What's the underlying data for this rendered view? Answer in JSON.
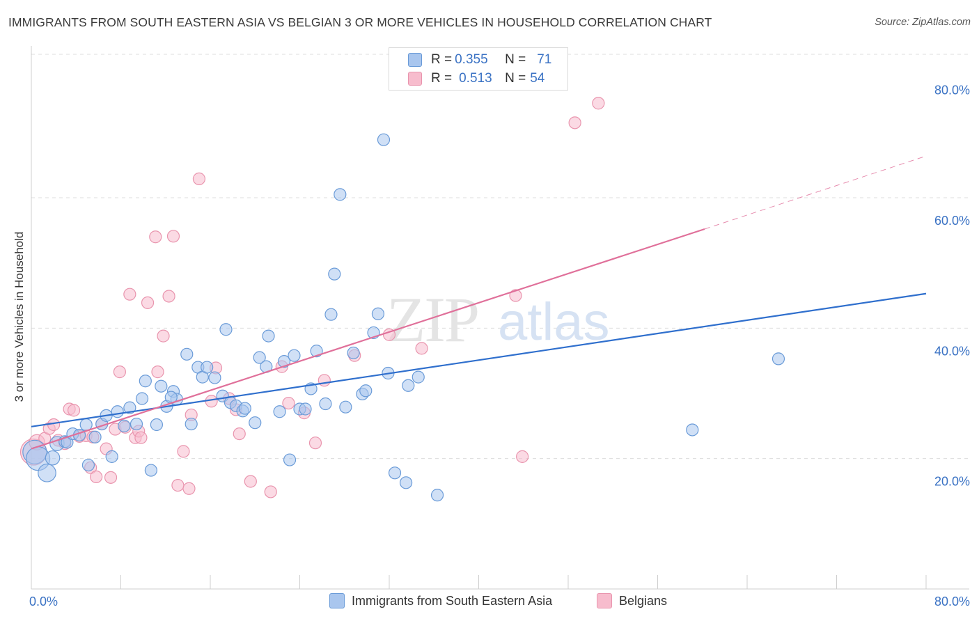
{
  "title": "IMMIGRANTS FROM SOUTH EASTERN ASIA VS BELGIAN 3 OR MORE VEHICLES IN HOUSEHOLD CORRELATION CHART",
  "source": "Source: ZipAtlas.com",
  "watermark": {
    "zip": "ZIP",
    "atlas": "atlas"
  },
  "legend_top": {
    "rows": [
      {
        "r_label": "R = ",
        "r_value": "0.355",
        "n_label": "N = ",
        "n_value": "71"
      },
      {
        "r_label": "R = ",
        "r_value": "0.513",
        "n_label": "N = ",
        "n_value": "54"
      }
    ]
  },
  "legend_bottom": {
    "items": [
      {
        "label": "Immigrants from South Eastern Asia"
      },
      {
        "label": "Belgians"
      }
    ]
  },
  "colors": {
    "blue_fill": "#a9c6ee",
    "blue_stroke": "#6a9bd8",
    "blue_line": "#2f6fcd",
    "pink_fill": "#f7bccd",
    "pink_stroke": "#e995ae",
    "pink_line": "#e0709a",
    "axis_text": "#3a72c4",
    "grid": "#dcdcdc"
  },
  "chart_data": {
    "type": "scatter",
    "title": "IMMIGRANTS FROM SOUTH EASTERN ASIA VS BELGIAN 3 OR MORE VEHICLES IN HOUSEHOLD CORRELATION CHART",
    "xlabel": "",
    "ylabel": "3 or more Vehicles in Household",
    "xlim": [
      0,
      80
    ],
    "ylim": [
      0,
      82
    ],
    "x_tick_labels": [
      "0.0%",
      "80.0%"
    ],
    "y_ticks": [
      20,
      40,
      60,
      80
    ],
    "y_tick_labels": [
      "20.0%",
      "40.0%",
      "60.0%",
      "80.0%"
    ],
    "grid": true,
    "legend": "top-center",
    "series": [
      {
        "name": "Immigrants from South Eastern Asia",
        "R": 0.355,
        "N": 71,
        "trend": {
          "x0": 0,
          "y0": 24.9,
          "x1": 80,
          "y1": 45.3,
          "dashed_to": null
        },
        "points": [
          [
            0.3,
            21.0,
            2
          ],
          [
            0.6,
            20.0,
            2
          ],
          [
            1.4,
            17.8,
            1.5
          ],
          [
            1.9,
            20.1,
            1.2
          ],
          [
            2.3,
            22.3,
            1.2
          ],
          [
            3.0,
            22.6,
            1
          ],
          [
            3.2,
            22.5,
            1
          ],
          [
            3.7,
            23.8,
            1
          ],
          [
            4.3,
            23.6,
            1
          ],
          [
            4.9,
            25.2,
            1
          ],
          [
            5.1,
            19.0,
            1
          ],
          [
            5.7,
            23.3,
            1
          ],
          [
            6.3,
            25.3,
            1
          ],
          [
            6.7,
            26.6,
            1
          ],
          [
            7.2,
            20.3,
            1
          ],
          [
            7.7,
            27.2,
            1
          ],
          [
            8.3,
            25.0,
            1
          ],
          [
            8.8,
            27.8,
            1
          ],
          [
            9.4,
            25.3,
            1
          ],
          [
            9.9,
            29.2,
            1
          ],
          [
            10.2,
            31.9,
            1
          ],
          [
            10.7,
            18.2,
            1
          ],
          [
            11.2,
            25.2,
            1
          ],
          [
            11.6,
            31.1,
            1
          ],
          [
            12.1,
            28.0,
            1
          ],
          [
            12.7,
            30.3,
            1
          ],
          [
            13.0,
            29.1,
            1
          ],
          [
            13.9,
            36.0,
            1
          ],
          [
            14.3,
            25.3,
            1
          ],
          [
            14.9,
            34.0,
            1
          ],
          [
            15.3,
            32.5,
            1
          ],
          [
            15.7,
            34.0,
            1
          ],
          [
            16.4,
            32.4,
            1
          ],
          [
            17.1,
            29.6,
            1
          ],
          [
            17.4,
            39.8,
            1
          ],
          [
            17.8,
            28.6,
            1
          ],
          [
            18.3,
            28.1,
            1
          ],
          [
            18.9,
            27.3,
            1
          ],
          [
            19.1,
            27.7,
            1
          ],
          [
            20.0,
            25.5,
            1
          ],
          [
            20.4,
            35.5,
            1
          ],
          [
            21.0,
            34.1,
            1
          ],
          [
            21.2,
            38.8,
            1
          ],
          [
            22.2,
            27.2,
            1
          ],
          [
            22.6,
            34.9,
            1
          ],
          [
            23.1,
            19.8,
            1
          ],
          [
            23.5,
            35.8,
            1
          ],
          [
            24.0,
            27.6,
            1
          ],
          [
            24.5,
            27.6,
            1
          ],
          [
            25.0,
            30.7,
            1
          ],
          [
            25.5,
            36.5,
            1
          ],
          [
            26.3,
            28.4,
            1
          ],
          [
            26.8,
            42.1,
            1
          ],
          [
            27.1,
            48.3,
            1
          ],
          [
            27.6,
            60.5,
            1
          ],
          [
            28.1,
            27.9,
            1
          ],
          [
            28.8,
            36.2,
            1
          ],
          [
            29.6,
            29.9,
            1
          ],
          [
            29.9,
            30.4,
            1
          ],
          [
            30.6,
            39.3,
            1
          ],
          [
            31.0,
            42.2,
            1
          ],
          [
            31.5,
            68.9,
            1
          ],
          [
            31.9,
            33.1,
            1
          ],
          [
            32.5,
            17.8,
            1
          ],
          [
            33.5,
            16.3,
            1
          ],
          [
            33.7,
            31.2,
            1
          ],
          [
            34.6,
            32.5,
            1
          ],
          [
            36.3,
            14.4,
            1
          ],
          [
            59.1,
            24.4,
            1
          ],
          [
            66.8,
            35.3,
            1
          ],
          [
            12.5,
            29.4,
            1
          ]
        ]
      },
      {
        "name": "Belgians",
        "R": 0.513,
        "N": 54,
        "trend": {
          "x0": 0,
          "y0": 21.5,
          "x1": 60.2,
          "y1": 55.2,
          "dashed_to": [
            80,
            66.4
          ]
        },
        "points": [
          [
            0.2,
            21.0,
            2.2
          ],
          [
            0.5,
            22.5,
            1.3
          ],
          [
            1.2,
            23.1,
            1
          ],
          [
            1.6,
            24.6,
            1
          ],
          [
            2.0,
            25.2,
            1
          ],
          [
            2.4,
            22.8,
            1
          ],
          [
            3.0,
            22.3,
            1
          ],
          [
            3.4,
            27.6,
            1
          ],
          [
            3.8,
            27.4,
            1
          ],
          [
            4.3,
            23.4,
            1
          ],
          [
            4.9,
            23.5,
            1
          ],
          [
            5.3,
            18.6,
            1
          ],
          [
            5.8,
            17.2,
            1
          ],
          [
            6.3,
            25.3,
            1
          ],
          [
            6.7,
            21.5,
            1
          ],
          [
            7.1,
            17.1,
            1
          ],
          [
            7.5,
            24.5,
            1
          ],
          [
            7.9,
            33.3,
            1
          ],
          [
            8.4,
            24.8,
            1
          ],
          [
            8.8,
            45.2,
            1
          ],
          [
            9.3,
            23.2,
            1
          ],
          [
            9.6,
            24.2,
            1
          ],
          [
            9.8,
            23.2,
            1
          ],
          [
            10.4,
            43.9,
            1
          ],
          [
            11.1,
            54.0,
            1
          ],
          [
            11.3,
            33.3,
            1
          ],
          [
            11.8,
            38.8,
            1
          ],
          [
            12.3,
            44.9,
            1
          ],
          [
            12.7,
            54.1,
            1
          ],
          [
            13.1,
            15.9,
            1
          ],
          [
            13.6,
            21.1,
            1
          ],
          [
            14.1,
            15.4,
            1
          ],
          [
            14.3,
            26.7,
            1
          ],
          [
            15.0,
            62.9,
            1
          ],
          [
            16.1,
            28.8,
            1
          ],
          [
            16.5,
            33.9,
            1
          ],
          [
            17.7,
            29.2,
            1
          ],
          [
            18.6,
            23.8,
            1
          ],
          [
            19.6,
            16.5,
            1
          ],
          [
            21.4,
            14.9,
            1
          ],
          [
            22.4,
            34.1,
            1
          ],
          [
            23.0,
            28.5,
            1
          ],
          [
            24.4,
            27.0,
            1
          ],
          [
            25.4,
            22.4,
            1
          ],
          [
            26.2,
            32.0,
            1
          ],
          [
            28.9,
            35.8,
            1
          ],
          [
            32.0,
            39.0,
            1
          ],
          [
            34.9,
            36.9,
            1
          ],
          [
            43.3,
            45.0,
            1
          ],
          [
            43.9,
            20.3,
            1
          ],
          [
            48.6,
            71.5,
            1
          ],
          [
            50.7,
            74.5,
            1
          ],
          [
            18.3,
            27.5,
            1
          ],
          [
            5.5,
            23.3,
            1
          ]
        ]
      }
    ]
  }
}
